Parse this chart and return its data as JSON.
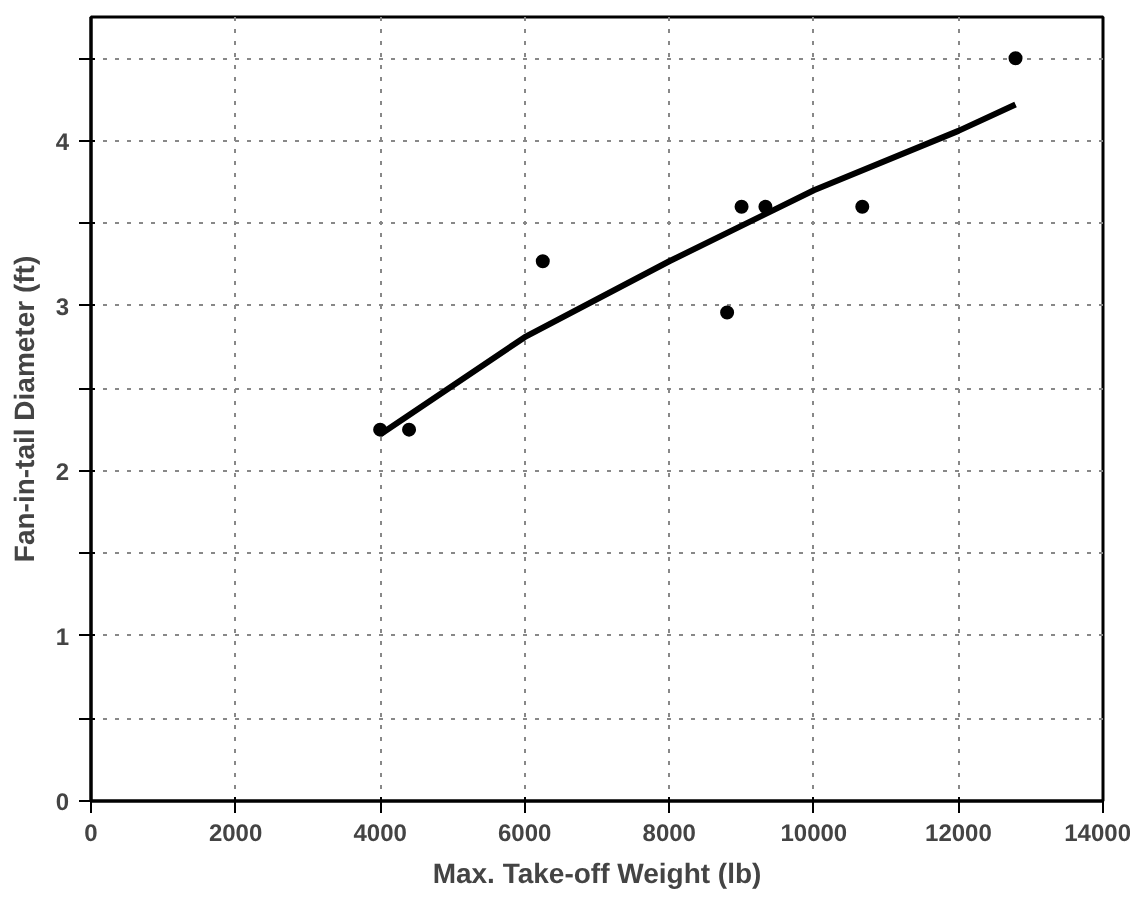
{
  "chart_data": {
    "type": "scatter",
    "xlabel": "Max. Take-off Weight (lb)",
    "ylabel": "Fan-in-tail Diameter (ft)",
    "xlim": [
      0,
      14000
    ],
    "ylim": [
      0,
      4.75
    ],
    "xticks": [
      0,
      2000,
      4000,
      6000,
      8000,
      10000,
      12000,
      14000
    ],
    "yticks": [
      0,
      {
        "value": 0.5,
        "label": null
      },
      1,
      {
        "value": 1.5,
        "label": null
      },
      2,
      {
        "value": 2.5,
        "label": null
      },
      3,
      {
        "value": 3.5,
        "label": null
      },
      4,
      {
        "value": 4.5,
        "label": null
      }
    ],
    "grid": true,
    "marker": "circle",
    "series": [
      {
        "color": "#000000",
        "x": [
          4000,
          4400,
          6250,
          8800,
          9000,
          9330,
          10670,
          12790
        ],
        "values": [
          2.25,
          2.25,
          3.27,
          2.96,
          3.6,
          3.6,
          3.6,
          4.5
        ]
      },
      {
        "type": "line",
        "marker": "none",
        "color": "#000000",
        "x": [
          4000,
          6000,
          8000,
          10000,
          12000,
          12790
        ],
        "values": [
          2.22,
          2.81,
          3.27,
          3.7,
          4.06,
          4.22
        ]
      }
    ]
  }
}
